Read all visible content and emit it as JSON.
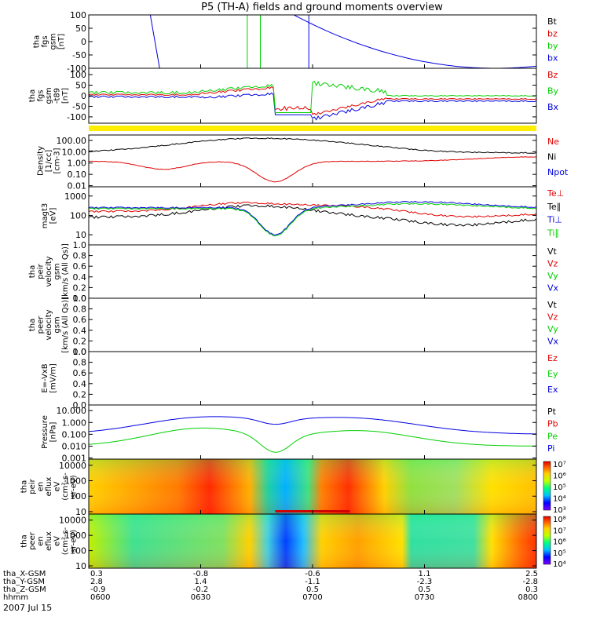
{
  "title": "P5 (TH-A) fields and ground moments overview",
  "date": "2007 Jul 15",
  "colors": {
    "black": "#000000",
    "red": "#e00000",
    "green": "#00d000",
    "blue": "#0000e0",
    "yellow": "#ffee00"
  },
  "chart_data": [
    {
      "type": "line",
      "id": "fgs",
      "ylabel": [
        "tha",
        "fgs",
        "gsm",
        "[nT]"
      ],
      "ylim": [
        -100,
        100
      ],
      "scale": "linear",
      "ticks": [
        "100",
        "50",
        "0",
        "-50",
        "-100"
      ],
      "tick_values": [
        100,
        50,
        0,
        -50,
        -100
      ],
      "legend": [
        {
          "label": "Bt",
          "color": "black"
        },
        {
          "label": "bz",
          "color": "red"
        },
        {
          "label": "by",
          "color": "green"
        },
        {
          "label": "bx",
          "color": "blue"
        }
      ]
    },
    {
      "type": "line",
      "id": "fgs_sm",
      "ylabel": [
        "tha",
        "fgs",
        "gsm",
        "-t89",
        "[nT]"
      ],
      "ylim": [
        -130,
        130
      ],
      "scale": "linear",
      "ticks": [
        "100",
        "50",
        "0",
        "-50",
        "-100"
      ],
      "tick_values": [
        100,
        50,
        0,
        -50,
        -100
      ],
      "legend": [
        {
          "label": "Bz",
          "color": "red"
        },
        {
          "label": "By",
          "color": "green"
        },
        {
          "label": "Bx",
          "color": "blue"
        }
      ]
    },
    {
      "type": "line",
      "id": "density",
      "ylabel": [
        "Density",
        "[1/cc]",
        "[cm-3]"
      ],
      "ylim": [
        0.008,
        300
      ],
      "scale": "log",
      "ticks": [
        "100.00",
        "10.00",
        "1.00",
        "0.10",
        "0.01"
      ],
      "tick_values": [
        100,
        10,
        1,
        0.1,
        0.01
      ],
      "legend": [
        {
          "label": "Ne",
          "color": "red"
        },
        {
          "label": "Ni",
          "color": "black"
        },
        {
          "label": "Npot",
          "color": "blue"
        }
      ]
    },
    {
      "type": "line",
      "id": "temp",
      "ylabel": [
        "magt3",
        "[eV]"
      ],
      "ylim": [
        3,
        3000
      ],
      "scale": "log",
      "ticks": [
        "1000",
        "100",
        "10"
      ],
      "tick_values": [
        1000,
        100,
        10
      ],
      "legend": [
        {
          "label": "Te⊥",
          "color": "red"
        },
        {
          "label": "Te∥",
          "color": "black"
        },
        {
          "label": "Ti⊥",
          "color": "blue"
        },
        {
          "label": "Ti∥",
          "color": "green"
        }
      ]
    },
    {
      "type": "line",
      "id": "vi",
      "ylabel": [
        "tha",
        "peir",
        "velocity",
        "gsm",
        "[km/s (All Qs)]"
      ],
      "ylim": [
        0,
        1
      ],
      "scale": "linear",
      "ticks": [
        "1.0",
        "0.8",
        "0.6",
        "0.4",
        "0.2",
        "0.0"
      ],
      "tick_values": [
        1,
        0.8,
        0.6,
        0.4,
        0.2,
        0
      ],
      "legend": [
        {
          "label": "Vt",
          "color": "black"
        },
        {
          "label": "Vz",
          "color": "red"
        },
        {
          "label": "Vy",
          "color": "green"
        },
        {
          "label": "Vx",
          "color": "blue"
        }
      ]
    },
    {
      "type": "line",
      "id": "ve",
      "ylabel": [
        "tha",
        "peer",
        "velocity",
        "gsm",
        "[km/s (All Qs)]"
      ],
      "ylim": [
        0,
        1
      ],
      "scale": "linear",
      "ticks": [
        "1.0",
        "0.8",
        "0.6",
        "0.4",
        "0.2",
        "0.0"
      ],
      "tick_values": [
        1,
        0.8,
        0.6,
        0.4,
        0.2,
        0
      ],
      "legend": [
        {
          "label": "Vt",
          "color": "black"
        },
        {
          "label": "Vz",
          "color": "red"
        },
        {
          "label": "Vy",
          "color": "green"
        },
        {
          "label": "Vx",
          "color": "blue"
        }
      ]
    },
    {
      "type": "line",
      "id": "efield",
      "ylabel": [
        "E=-VxB",
        "[mV/m]"
      ],
      "ylim": [
        0,
        1
      ],
      "scale": "linear",
      "ticks": [
        "1.0",
        "0.8",
        "0.6",
        "0.4",
        "0.2",
        "0.0"
      ],
      "tick_values": [
        1,
        0.8,
        0.6,
        0.4,
        0.2,
        0
      ],
      "legend": [
        {
          "label": "Ez",
          "color": "red"
        },
        {
          "label": "Ey",
          "color": "green"
        },
        {
          "label": "Ex",
          "color": "blue"
        }
      ]
    },
    {
      "type": "line",
      "id": "pressure",
      "ylabel": [
        "Pressure",
        "[nPa]"
      ],
      "ylim": [
        0.0008,
        30
      ],
      "scale": "log",
      "ticks": [
        "10.000",
        "1.000",
        "0.100",
        "0.010",
        "0.001"
      ],
      "tick_values": [
        10,
        1,
        0.1,
        0.01,
        0.001
      ],
      "legend": [
        {
          "label": "Pt",
          "color": "black"
        },
        {
          "label": "Pb",
          "color": "red"
        },
        {
          "label": "Pe",
          "color": "green"
        },
        {
          "label": "Pi",
          "color": "blue"
        }
      ]
    },
    {
      "type": "heatmap",
      "id": "ion_spec",
      "ylabel": [
        "tha",
        "peir",
        "en",
        "eflux",
        "eV",
        "(cm²-s-",
        "sr-eV)"
      ],
      "ylim": [
        7,
        25000
      ],
      "scale": "log",
      "ticks": [
        "10000",
        "1000",
        "100",
        "10"
      ],
      "tick_values": [
        10000,
        1000,
        100,
        10
      ],
      "colorbar": [
        "10³",
        "10⁴",
        "10⁵",
        "10⁶",
        "10⁷"
      ],
      "colorbar_range": [
        1000,
        10000000
      ]
    },
    {
      "type": "heatmap",
      "id": "ele_spec",
      "ylabel": [
        "tha",
        "peer",
        "en",
        "eflux",
        "eV",
        "(cm²-s-",
        "sr-eV)"
      ],
      "ylim": [
        7,
        25000
      ],
      "scale": "log",
      "ticks": [
        "10000",
        "1000",
        "100",
        "10"
      ],
      "tick_values": [
        10000,
        1000,
        100,
        10
      ],
      "colorbar": [
        "10⁴",
        "10⁵",
        "10⁶",
        "10⁷",
        "10⁸"
      ],
      "colorbar_range": [
        10000,
        100000000
      ]
    }
  ],
  "xaxis": {
    "tick_minutes": [
      0,
      30,
      60,
      90,
      120
    ],
    "row_labels": [
      "tha_X-GSM",
      "tha_Y-GSM",
      "tha_Z-GSM",
      "hhmm"
    ],
    "columns": [
      [
        "0.3",
        "2.8",
        "-0.9",
        "0600"
      ],
      [
        "-0.8",
        "1.4",
        "-0.2",
        "0630"
      ],
      [
        "-0.6",
        "-1.1",
        "0.5",
        "0700"
      ],
      [
        "1.1",
        "-2.3",
        "0.5",
        "0730"
      ],
      [
        "2.5",
        "-2.8",
        "0.3",
        "0800"
      ]
    ]
  }
}
